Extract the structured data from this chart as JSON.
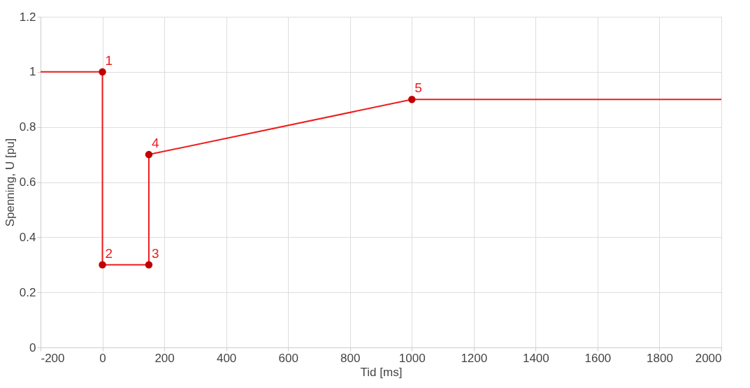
{
  "chart_data": {
    "type": "line",
    "xlabel": "Tid [ms]",
    "ylabel": "Spenning, U [pu]",
    "xlim": [
      -200,
      2000
    ],
    "xticks": [
      -200,
      0,
      200,
      400,
      600,
      800,
      1000,
      1200,
      1400,
      1600,
      1800,
      2000
    ],
    "ylim": [
      0,
      1.2
    ],
    "yticks": [
      0,
      0.2,
      0.4,
      0.6,
      0.8,
      1,
      1.2
    ],
    "grid": true,
    "series": [
      {
        "color": "#ee1c1c",
        "marker": "none",
        "x": [
          -200,
          0,
          0,
          150,
          150,
          1000,
          2000
        ],
        "values": [
          1,
          1,
          0.3,
          0.3,
          0.7,
          0.9,
          0.9
        ]
      },
      {
        "type": "scatter",
        "color": "#c00000",
        "marker": "circle",
        "x": [
          0,
          0,
          150,
          150,
          1000
        ],
        "values": [
          1,
          0.3,
          0.3,
          0.7,
          0.9
        ]
      }
    ],
    "annotations": [
      {
        "text": "1",
        "x": 0,
        "y": 1
      },
      {
        "text": "2",
        "x": 0,
        "y": 0.3
      },
      {
        "text": "3",
        "x": 150,
        "y": 0.3
      },
      {
        "text": "4",
        "x": 150,
        "y": 0.7
      },
      {
        "text": "5",
        "x": 1000,
        "y": 0.9
      }
    ]
  }
}
